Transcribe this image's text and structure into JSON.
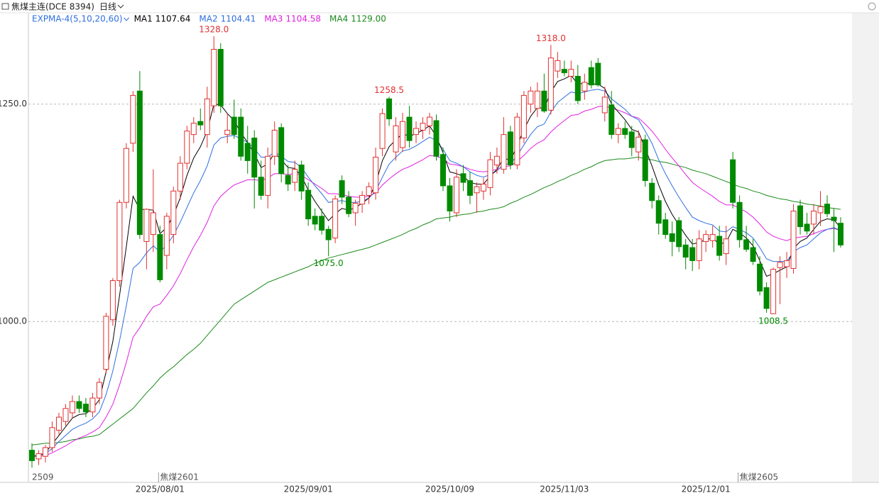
{
  "header": {
    "symbol": "焦煤主连(DCE 8394)",
    "period": "日线"
  },
  "chart_data": {
    "type": "candlestick",
    "indicator": "EXPMA-4(5,10,20,60)",
    "ylim": [
      815,
      1355
    ],
    "yticks": [
      {
        "value": 1000,
        "label": "1000.0"
      },
      {
        "value": 1250,
        "label": "1250.0"
      }
    ],
    "grid": true,
    "categories": [
      null,
      null,
      null,
      null,
      null,
      null,
      null,
      null,
      null,
      null,
      null,
      null,
      null,
      null,
      null,
      null,
      null,
      null,
      null,
      "2025/08/01",
      null,
      null,
      null,
      null,
      null,
      null,
      null,
      null,
      null,
      null,
      null,
      null,
      null,
      null,
      null,
      null,
      null,
      null,
      null,
      null,
      null,
      "2025/09/01",
      null,
      null,
      null,
      null,
      null,
      null,
      null,
      null,
      null,
      null,
      null,
      null,
      null,
      null,
      null,
      null,
      null,
      null,
      null,
      null,
      "2025/10/09",
      null,
      null,
      null,
      null,
      null,
      null,
      null,
      null,
      null,
      null,
      null,
      null,
      null,
      null,
      null,
      null,
      "2025/11/03",
      null,
      null,
      null,
      null,
      null,
      null,
      null,
      null,
      null,
      null,
      null,
      null,
      null,
      null,
      null,
      null,
      null,
      null,
      null,
      null,
      "2025/12/01",
      null,
      null,
      null,
      null,
      null,
      null,
      null,
      null,
      null,
      null,
      null,
      null,
      null,
      null,
      null,
      null,
      null,
      null,
      null,
      null
    ],
    "contract_labels": {
      "0": "2509",
      "19": "焦煤2601",
      "105": "焦煤2605"
    },
    "candles": {
      "up_color": "#e03030",
      "down_color": "#008a00",
      "open": [
        852,
        842,
        845,
        855,
        875,
        885,
        895,
        908,
        905,
        896,
        912,
        945,
        1002,
        1047,
        1137,
        1205,
        1265,
        1092,
        1100,
        1100,
        1076,
        1100,
        1150,
        1182,
        1215,
        1230,
        1215,
        1248,
        1313,
        1215,
        1235,
        1235,
        1205,
        1211,
        1166,
        1145,
        1190,
        1223,
        1168,
        1160,
        1180,
        1151,
        1121,
        1121,
        1106,
        1096,
        1162,
        1143,
        1125,
        1135,
        1145,
        1148,
        1199,
        1256,
        1195,
        1200,
        1235,
        1215,
        1220,
        1225,
        1231,
        1192,
        1156,
        1125,
        1170,
        1162,
        1148,
        1150,
        1154,
        1180,
        1175,
        1218,
        1180,
        1211,
        1250,
        1245,
        1265,
        1243,
        1288,
        1290,
        1282,
        1282,
        1265,
        1292,
        1297,
        1240,
        1249,
        1215,
        1222,
        1218,
        1195,
        1209,
        1159,
        1139,
        1117,
        1101,
        1116,
        1088,
        1085,
        1070,
        1092,
        1093,
        1098,
        1078,
        1186,
        1137,
        1094,
        1085,
        1066,
        1039,
        1009,
        1062,
        1063,
        1061,
        1133,
        1112,
        1112,
        1125,
        1135,
        1120,
        1113
      ],
      "high": [
        860,
        852,
        858,
        885,
        895,
        905,
        915,
        915,
        912,
        918,
        935,
        1010,
        1050,
        1140,
        1205,
        1265,
        1288,
        1130,
        1175,
        1110,
        1125,
        1155,
        1190,
        1225,
        1235,
        1245,
        1270,
        1328,
        1320,
        1240,
        1255,
        1245,
        1225,
        1220,
        1185,
        1200,
        1230,
        1228,
        1180,
        1185,
        1185,
        1160,
        1130,
        1130,
        1110,
        1145,
        1168,
        1150,
        1140,
        1150,
        1160,
        1200,
        1245,
        1258.5,
        1235,
        1240,
        1248,
        1230,
        1235,
        1240,
        1238,
        1200,
        1165,
        1175,
        1180,
        1172,
        1160,
        1165,
        1195,
        1200,
        1235,
        1225,
        1240,
        1265,
        1270,
        1275,
        1285,
        1318,
        1310,
        1300,
        1300,
        1295,
        1285,
        1300,
        1303,
        1270,
        1265,
        1228,
        1230,
        1225,
        1220,
        1215,
        1165,
        1145,
        1125,
        1115,
        1120,
        1095,
        1095,
        1105,
        1105,
        1110,
        1110,
        1110,
        1195,
        1145,
        1110,
        1095,
        1075,
        1045,
        1062,
        1075,
        1080,
        1135,
        1140,
        1125,
        1135,
        1150,
        1145,
        1130,
        1120
      ],
      "low": [
        832,
        835,
        838,
        850,
        870,
        880,
        888,
        895,
        890,
        890,
        905,
        940,
        995,
        1040,
        1130,
        1195,
        1095,
        1060,
        1080,
        1045,
        1060,
        1090,
        1140,
        1175,
        1205,
        1220,
        1200,
        1240,
        1240,
        1205,
        1210,
        1185,
        1170,
        1130,
        1140,
        1130,
        1180,
        1160,
        1150,
        1150,
        1140,
        1110,
        1105,
        1100,
        1075,
        1090,
        1135,
        1120,
        1110,
        1125,
        1135,
        1140,
        1190,
        1225,
        1185,
        1195,
        1200,
        1205,
        1210,
        1215,
        1185,
        1150,
        1115,
        1120,
        1150,
        1135,
        1125,
        1140,
        1145,
        1170,
        1170,
        1175,
        1175,
        1205,
        1240,
        1235,
        1240,
        1238,
        1280,
        1282,
        1275,
        1250,
        1255,
        1268,
        1270,
        1230,
        1210,
        1205,
        1210,
        1190,
        1185,
        1155,
        1130,
        1100,
        1095,
        1075,
        1080,
        1060,
        1058,
        1060,
        1080,
        1085,
        1070,
        1065,
        1130,
        1085,
        1080,
        1065,
        1030,
        1010,
        1008.5,
        1020,
        1050,
        1055,
        1100,
        1100,
        1100,
        1110,
        1120,
        1080,
        1085
      ],
      "close": [
        840,
        848,
        855,
        878,
        890,
        900,
        908,
        900,
        896,
        912,
        930,
        1006,
        1047,
        1137,
        1199,
        1260,
        1100,
        1129,
        1125,
        1048,
        1121,
        1150,
        1182,
        1219,
        1228,
        1226,
        1256,
        1313,
        1248,
        1220,
        1215,
        1190,
        1185,
        1166,
        1145,
        1190,
        1220,
        1170,
        1158,
        1175,
        1150,
        1118,
        1112,
        1105,
        1094,
        1141,
        1143,
        1124,
        1136,
        1145,
        1155,
        1189,
        1239,
        1233,
        1225,
        1230,
        1208,
        1222,
        1228,
        1235,
        1190,
        1156,
        1127,
        1166,
        1160,
        1145,
        1155,
        1158,
        1186,
        1190,
        1215,
        1180,
        1235,
        1260,
        1265,
        1265,
        1242,
        1303,
        1300,
        1286,
        1290,
        1254,
        1275,
        1272,
        1272,
        1258,
        1215,
        1222,
        1215,
        1200,
        1212,
        1162,
        1139,
        1113,
        1100,
        1092,
        1086,
        1074,
        1070,
        1095,
        1100,
        1100,
        1076,
        1095,
        1137,
        1094,
        1083,
        1069,
        1035,
        1015,
        1060,
        1068,
        1070,
        1127,
        1109,
        1104,
        1127,
        1132,
        1124,
        1116,
        1088
      ],
      "high_labels": {
        "27": "1328.0",
        "53": "1258.5",
        "77": "1318.0"
      },
      "low_labels": {
        "44": "1075.0",
        "110": "1008.5"
      }
    },
    "series": [
      {
        "name": "MA1",
        "color": "#000000",
        "legend_value": "1107.64",
        "values": [
          845,
          846,
          849,
          859,
          869,
          879,
          889,
          893,
          894,
          900,
          910,
          942,
          977,
          1030,
          1086,
          1144,
          1129,
          1129,
          1128,
          1101,
          1108,
          1122,
          1142,
          1168,
          1188,
          1201,
          1219,
          1250,
          1249,
          1239,
          1231,
          1217,
          1206,
          1193,
          1177,
          1181,
          1194,
          1186,
          1177,
          1176,
          1167,
          1151,
          1138,
          1127,
          1116,
          1124,
          1130,
          1128,
          1131,
          1136,
          1142,
          1158,
          1185,
          1201,
          1209,
          1216,
          1213,
          1216,
          1220,
          1225,
          1213,
          1194,
          1172,
          1170,
          1167,
          1160,
          1158,
          1158,
          1167,
          1175,
          1188,
          1185,
          1202,
          1221,
          1236,
          1246,
          1245,
          1264,
          1276,
          1279,
          1283,
          1273,
          1274,
          1273,
          1273,
          1268,
          1250,
          1241,
          1232,
          1221,
          1218,
          1199,
          1179,
          1157,
          1138,
          1123,
          1111,
          1099,
          1089,
          1091,
          1094,
          1096,
          1089,
          1091,
          1106,
          1102,
          1096,
          1087,
          1070,
          1052,
          1055,
          1059,
          1063,
          1084,
          1092,
          1096,
          1106,
          1115,
          1118,
          1117,
          1107.64
        ]
      },
      {
        "name": "MA2",
        "color": "#2f6fe0",
        "legend_value": "1104.41",
        "values": [
          845,
          846,
          848,
          854,
          862,
          869,
          876,
          880,
          883,
          888,
          896,
          916,
          943,
          978,
          1018,
          1061,
          1068,
          1079,
          1087,
          1080,
          1088,
          1099,
          1114,
          1131,
          1148,
          1162,
          1179,
          1203,
          1211,
          1213,
          1214,
          1210,
          1206,
          1199,
          1189,
          1189,
          1195,
          1190,
          1184,
          1183,
          1177,
          1166,
          1156,
          1147,
          1137,
          1138,
          1139,
          1137,
          1137,
          1138,
          1142,
          1150,
          1166,
          1181,
          1189,
          1196,
          1198,
          1202,
          1207,
          1212,
          1208,
          1198,
          1185,
          1182,
          1178,
          1172,
          1168,
          1166,
          1169,
          1173,
          1181,
          1181,
          1191,
          1203,
          1215,
          1224,
          1227,
          1241,
          1252,
          1258,
          1264,
          1262,
          1264,
          1266,
          1267,
          1265,
          1256,
          1250,
          1244,
          1236,
          1232,
          1219,
          1205,
          1186,
          1170,
          1156,
          1143,
          1131,
          1120,
          1116,
          1113,
          1111,
          1104,
          1103,
          1109,
          1106,
          1102,
          1096,
          1085,
          1072,
          1069,
          1069,
          1069,
          1080,
          1085,
          1088,
          1095,
          1102,
          1106,
          1108,
          1104.41
        ]
      },
      {
        "name": "MA3",
        "color": "#e020e0",
        "legend_value": "1104.58",
        "values": [
          845,
          845,
          846,
          849,
          853,
          857,
          862,
          866,
          869,
          873,
          878,
          890,
          905,
          927,
          953,
          982,
          993,
          1006,
          1017,
          1020,
          1030,
          1041,
          1055,
          1071,
          1086,
          1099,
          1114,
          1133,
          1144,
          1151,
          1157,
          1160,
          1163,
          1163,
          1162,
          1165,
          1170,
          1170,
          1169,
          1170,
          1168,
          1163,
          1158,
          1153,
          1147,
          1147,
          1146,
          1144,
          1143,
          1143,
          1144,
          1148,
          1157,
          1164,
          1170,
          1175,
          1178,
          1182,
          1186,
          1191,
          1190,
          1187,
          1181,
          1180,
          1178,
          1175,
          1173,
          1172,
          1173,
          1175,
          1178,
          1179,
          1184,
          1191,
          1199,
          1205,
          1209,
          1218,
          1225,
          1231,
          1237,
          1238,
          1242,
          1244,
          1247,
          1248,
          1245,
          1243,
          1240,
          1236,
          1234,
          1227,
          1219,
          1209,
          1198,
          1188,
          1179,
          1169,
          1160,
          1154,
          1149,
          1144,
          1138,
          1134,
          1134,
          1130,
          1126,
          1120,
          1112,
          1103,
          1098,
          1095,
          1093,
          1096,
          1097,
          1098,
          1101,
          1104,
          1106,
          1107,
          1104.58
        ]
      },
      {
        "name": "MA4",
        "color": "#1a8a1a",
        "legend_value": "1129.00",
        "values": [
          858,
          859,
          860,
          860,
          861,
          862,
          864,
          865,
          867,
          868,
          870,
          876,
          882,
          888,
          894,
          900,
          909,
          918,
          926,
          935,
          942,
          948,
          955,
          962,
          968,
          975,
          984,
          993,
          1002,
          1011,
          1020,
          1025,
          1030,
          1035,
          1040,
          1045,
          1048,
          1051,
          1054,
          1057,
          1060,
          1063,
          1067,
          1070,
          1073,
          1075,
          1077,
          1079,
          1081,
          1083,
          1085,
          1088,
          1091,
          1094,
          1097,
          1100,
          1104,
          1107,
          1111,
          1114,
          1118,
          1119,
          1120,
          1122,
          1123,
          1124,
          1126,
          1127,
          1129,
          1130,
          1132,
          1136,
          1139,
          1143,
          1146,
          1150,
          1154,
          1157,
          1161,
          1164,
          1168,
          1171,
          1175,
          1178,
          1182,
          1185,
          1186,
          1187,
          1187,
          1188,
          1189,
          1187,
          1186,
          1184,
          1183,
          1181,
          1179,
          1177,
          1174,
          1172,
          1170,
          1167,
          1164,
          1161,
          1158,
          1155,
          1153,
          1150,
          1148,
          1145,
          1143,
          1141,
          1140,
          1138,
          1137,
          1135,
          1134,
          1133,
          1131,
          1130,
          1129
        ]
      }
    ]
  }
}
